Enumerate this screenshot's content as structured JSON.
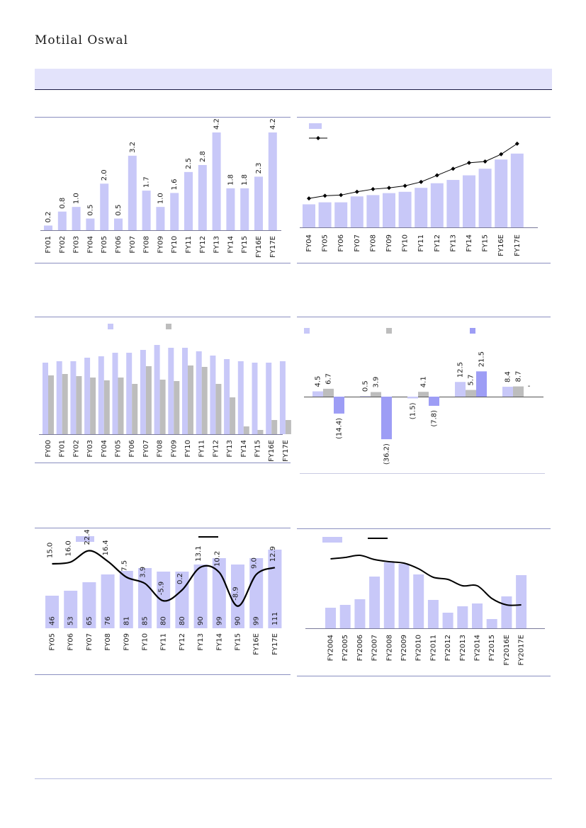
{
  "header": {
    "brand": "Motilal Oswal"
  },
  "colors": {
    "bar_main": "#c8c8f8",
    "bar_grey": "#bdbdbd",
    "bar_accent": "#9d9df5",
    "line": "#000000",
    "rule": "#8a8fc0"
  },
  "chart_data": [
    {
      "type": "bar",
      "categories": [
        "FY01",
        "FY02",
        "FY03",
        "FY04",
        "FY05",
        "FY06",
        "FY07",
        "FY08",
        "FY09",
        "FY10",
        "FY11",
        "FY12",
        "FY13",
        "FY14",
        "FY15",
        "FY16E",
        "FY17E"
      ],
      "values": [
        0.2,
        0.8,
        1.0,
        0.5,
        2.0,
        0.5,
        3.2,
        1.7,
        1.0,
        1.6,
        2.5,
        2.8,
        4.2,
        1.8,
        1.8,
        2.3,
        4.2
      ],
      "labels": [
        "0.2",
        "0.8",
        "1.0",
        "0.5",
        "2.0",
        "0.5",
        "3.2",
        "1.7",
        "1.0",
        "1.6",
        "2.5",
        "2.8",
        "4.2",
        "1.8",
        "1.8",
        "2.3",
        "4.2"
      ],
      "ylim": [
        0,
        4.2
      ]
    },
    {
      "type": "bar+line",
      "categories": [
        "FY04",
        "FY05",
        "FY06",
        "FY07",
        "FY08",
        "FY09",
        "FY10",
        "FY11",
        "FY12",
        "FY13",
        "FY14",
        "FY15",
        "FY16E",
        "FY17E"
      ],
      "series": [
        {
          "name": "",
          "type": "bar",
          "values": [
            35,
            38,
            38,
            47,
            49,
            52,
            54,
            60,
            67,
            72,
            79,
            89,
            103,
            112
          ]
        },
        {
          "name": "",
          "type": "line",
          "values": [
            44,
            48,
            49,
            54,
            58,
            60,
            63,
            69,
            79,
            89,
            98,
            100,
            111,
            127
          ]
        }
      ],
      "ylim": [
        0,
        130
      ]
    },
    {
      "type": "bar",
      "categories": [
        "FY00",
        "FY01",
        "FY02",
        "FY03",
        "FY04",
        "FY05",
        "FY06",
        "FY07",
        "FY08",
        "FY09",
        "FY10",
        "FY11",
        "FY12",
        "FY13",
        "FY14",
        "FY15",
        "FY16E",
        "FY17E"
      ],
      "series": [
        {
          "name": "",
          "values": [
            101,
            103,
            103,
            108,
            110,
            115,
            115,
            119,
            126,
            122,
            122,
            117,
            111,
            106,
            103,
            101,
            101,
            103
          ]
        },
        {
          "name": "",
          "values": [
            83,
            85,
            82,
            80,
            76,
            80,
            71,
            96,
            77,
            75,
            97,
            95,
            71,
            52,
            11,
            6,
            20,
            20
          ]
        }
      ],
      "ylim": [
        0,
        130
      ]
    },
    {
      "type": "bar",
      "groups": 5,
      "series": [
        {
          "name": "",
          "values": [
            4.5,
            0.5,
            -1.5,
            12.5,
            8.4
          ],
          "labels": [
            "4.5",
            "0.5",
            "(1.5)",
            "12.5",
            "8.4"
          ]
        },
        {
          "name": "",
          "values": [
            6.7,
            3.9,
            4.1,
            5.7,
            8.7
          ],
          "labels": [
            "6.7",
            "3.9",
            "4.1",
            "5.7",
            "8.7"
          ]
        },
        {
          "name": "",
          "values": [
            -14.4,
            -36.2,
            -7.8,
            21.5,
            0
          ],
          "labels": [
            "(14.4)",
            "(36.2)",
            "(7.8)",
            "21.5",
            "-"
          ]
        }
      ],
      "ylim": [
        -40,
        25
      ]
    },
    {
      "type": "bar+line",
      "categories": [
        "FY05",
        "FY06",
        "FY07",
        "FY08",
        "FY09",
        "FY10",
        "FY11",
        "FY12",
        "FY13",
        "FY14",
        "FY15",
        "FY16E",
        "FY17E"
      ],
      "series": [
        {
          "name": "",
          "type": "bar",
          "values": [
            46,
            53,
            65,
            76,
            81,
            85,
            80,
            80,
            90,
            99,
            90,
            99,
            111
          ],
          "labels": [
            "46",
            "53",
            "65",
            "76",
            "81",
            "85",
            "80",
            "80",
            "90",
            "99",
            "90",
            "99",
            "111"
          ]
        },
        {
          "name": "",
          "type": "line",
          "values": [
            15.0,
            16.0,
            22.4,
            16.4,
            7.5,
            3.9,
            -5.9,
            0.2,
            13.1,
            10.2,
            -8.9,
            9.0,
            12.9
          ],
          "labels": [
            "15.0",
            "16.0",
            "22.4",
            "16.4",
            "7.5",
            "3.9",
            "-5.9",
            "0.2",
            "13.1",
            "10.2",
            "-8.9",
            "9.0",
            "12.9"
          ]
        }
      ],
      "ylim_bar": [
        0,
        115
      ],
      "ylim_line": [
        -15,
        30
      ]
    },
    {
      "type": "bar+line",
      "categories": [
        "FY2004",
        "FY2005",
        "FY2006",
        "FY2007",
        "FY2008",
        "FY2009",
        "FY2010",
        "FY2011",
        "FY2012",
        "FY2013",
        "FY2014",
        "FY2015",
        "FY2016E",
        "FY2017E"
      ],
      "series": [
        {
          "name": "",
          "type": "bar",
          "values": [
            29,
            33,
            41,
            73,
            93,
            91,
            76,
            40,
            22,
            31,
            35,
            13,
            45,
            75
          ]
        },
        {
          "name": "",
          "type": "line",
          "values": [
            98,
            100,
            103,
            97,
            94,
            92,
            84,
            72,
            69,
            60,
            60,
            42,
            33,
            33
          ]
        }
      ],
      "ylim": [
        0,
        105
      ]
    }
  ]
}
